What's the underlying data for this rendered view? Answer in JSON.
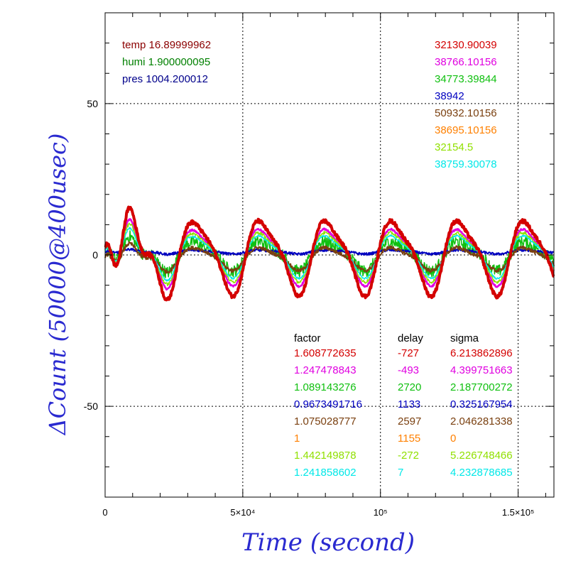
{
  "chart_data": {
    "type": "line",
    "xlabel": "Time (second)",
    "ylabel": "ΔCount (50000@400usec)",
    "xlim": [
      0,
      163000
    ],
    "ylim": [
      -80,
      80
    ],
    "x_ticks": [
      {
        "value": 0,
        "label": "0"
      },
      {
        "value": 50000,
        "label": "5×10⁴"
      },
      {
        "value": 100000,
        "label": "10⁵"
      },
      {
        "value": 150000,
        "label": "1.5×10⁵"
      }
    ],
    "y_ticks": [
      {
        "value": 50,
        "label": "50"
      },
      {
        "value": 0,
        "label": "0"
      },
      {
        "value": -50,
        "label": "-50"
      }
    ],
    "grid": true,
    "period_seconds": 24000,
    "env_labels": [
      {
        "text": "temp 16.89999962",
        "color": "#8b0000"
      },
      {
        "text": "humi 1.900000095",
        "color": "#008000"
      },
      {
        "text": "pres 1004.200012",
        "color": "#00008b"
      }
    ],
    "series_values": [
      {
        "value": "32130.90039",
        "color": "#d40000"
      },
      {
        "value": "38766.10156",
        "color": "#e000e0"
      },
      {
        "value": "34773.39844",
        "color": "#10c010"
      },
      {
        "value": "38942",
        "color": "#0000c0"
      },
      {
        "value": "50932.10156",
        "color": "#7a4010"
      },
      {
        "value": "38695.10156",
        "color": "#ff8000"
      },
      {
        "value": "32154.5",
        "color": "#90e000"
      },
      {
        "value": "38759.30078",
        "color": "#00e8e8"
      }
    ],
    "table_headers": [
      "factor",
      "delay",
      "sigma"
    ],
    "table_rows": [
      {
        "factor": "1.608772635",
        "delay": "-727",
        "sigma": "6.213862896",
        "color": "#d40000"
      },
      {
        "factor": "1.247478843",
        "delay": "-493",
        "sigma": "4.399751663",
        "color": "#e000e0"
      },
      {
        "factor": "1.089143276",
        "delay": "2720",
        "sigma": "2.187700272",
        "color": "#10c010"
      },
      {
        "factor": "0.9673491716",
        "delay": "1133",
        "sigma": "0.325167954",
        "color": "#0000c0"
      },
      {
        "factor": "1.075028777",
        "delay": "2597",
        "sigma": "2.046281338",
        "color": "#7a4010"
      },
      {
        "factor": "1",
        "delay": "1155",
        "sigma": "0",
        "color": "#ff8000"
      },
      {
        "factor": "1.442149878",
        "delay": "-272",
        "sigma": "5.226748466",
        "color": "#90e000"
      },
      {
        "factor": "1.241858602",
        "delay": "7",
        "sigma": "4.232878685",
        "color": "#00e8e8"
      }
    ],
    "series": [
      {
        "color": "#e000e0",
        "amplitude": 8.7,
        "offset": 0,
        "noise": 0.6,
        "width": 2.5
      },
      {
        "color": "#10c010",
        "amplitude": 4.5,
        "offset": 0,
        "noise": 4.0,
        "width": 1.5
      },
      {
        "color": "#0000c0",
        "amplitude": 0.6,
        "offset": 1.0,
        "noise": 0.8,
        "width": 2.0
      },
      {
        "color": "#7a4010",
        "amplitude": 3.5,
        "offset": -1.0,
        "noise": 1.2,
        "width": 2.0
      },
      {
        "color": "#90e000",
        "amplitude": 7.5,
        "offset": 0,
        "noise": 1.0,
        "width": 1.5
      },
      {
        "color": "#00e8e8",
        "amplitude": 6.5,
        "offset": 0,
        "noise": 0.6,
        "width": 1.5
      },
      {
        "color": "#d40000",
        "amplitude": 11.5,
        "offset": 0,
        "noise": 1.2,
        "width": 4.0
      }
    ]
  }
}
